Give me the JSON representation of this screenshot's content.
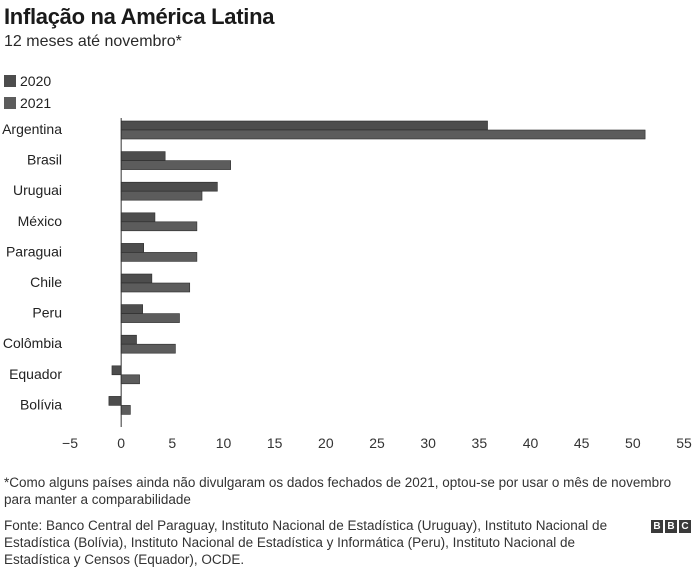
{
  "title": "Inflação na América Latina",
  "subtitle": "12 meses até novembro*",
  "legend": [
    {
      "label": "2020",
      "color": "#4d4d4d"
    },
    {
      "label": "2021",
      "color": "#5c5c5c"
    }
  ],
  "note": "*Como alguns países ainda não divulgaram os dados fechados de 2021, optou-se por usar o mês de novembro para manter a comparabilidade",
  "source": "Fonte: Banco Central del Paraguay, Instituto Nacional de Estadística (Uruguay), Instituto Nacional de Estadística (Bolívia), Instituto Nacional de Estadística y Informática (Peru), Instituto Nacional de Estadística y Censos (Equador), OCDE.",
  "logo": [
    "B",
    "B",
    "C"
  ],
  "chart_data": {
    "type": "bar",
    "orientation": "horizontal",
    "categories": [
      "Argentina",
      "Brasil",
      "Uruguai",
      "México",
      "Paraguai",
      "Chile",
      "Peru",
      "Colômbia",
      "Equador",
      "Bolívia"
    ],
    "series": [
      {
        "name": "2020",
        "color": "#4d4d4d",
        "values": [
          35.8,
          4.3,
          9.4,
          3.3,
          2.2,
          3.0,
          2.1,
          1.5,
          -0.9,
          -1.2
        ]
      },
      {
        "name": "2021",
        "color": "#5c5c5c",
        "values": [
          51.2,
          10.7,
          7.9,
          7.4,
          7.4,
          6.7,
          5.7,
          5.3,
          1.8,
          0.9
        ]
      }
    ],
    "xlim": [
      -5,
      55
    ],
    "xticks": [
      -5,
      0,
      5,
      10,
      15,
      20,
      25,
      30,
      35,
      40,
      45,
      50,
      55
    ],
    "grid": false,
    "legend_position": "top-left"
  }
}
